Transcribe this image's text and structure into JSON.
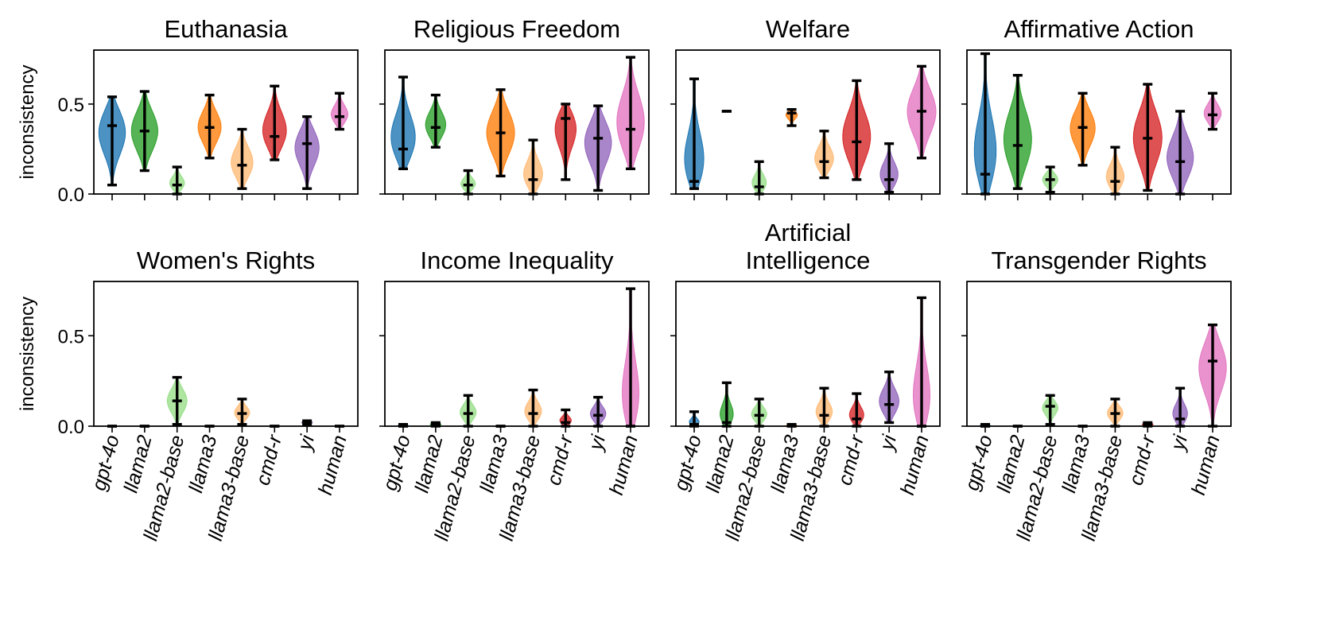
{
  "chart_data": {
    "type": "violin",
    "ylabel": "inconsistency",
    "ylim": [
      0,
      0.8
    ],
    "yticks": [
      0.0,
      0.5
    ],
    "ytick_labels": [
      "0.0",
      "0.5"
    ],
    "categories": [
      "gpt-4o",
      "llama2",
      "llama2-base",
      "llama3",
      "llama3-base",
      "cmd-r",
      "yi",
      "human"
    ],
    "colors": [
      "#1f77b4",
      "#2ca02c",
      "#98df8a",
      "#ff7f0e",
      "#ffbb78",
      "#d62728",
      "#9467bd",
      "#e377c2"
    ],
    "grid": false,
    "panels": [
      {
        "title": "Euthanasia",
        "series": [
          {
            "name": "gpt-4o",
            "min": 0.05,
            "median": 0.38,
            "max": 0.54
          },
          {
            "name": "llama2",
            "min": 0.13,
            "median": 0.35,
            "max": 0.57
          },
          {
            "name": "llama2-base",
            "min": 0.0,
            "median": 0.05,
            "max": 0.15
          },
          {
            "name": "llama3",
            "min": 0.2,
            "median": 0.37,
            "max": 0.55
          },
          {
            "name": "llama3-base",
            "min": 0.03,
            "median": 0.16,
            "max": 0.36
          },
          {
            "name": "cmd-r",
            "min": 0.19,
            "median": 0.32,
            "max": 0.6
          },
          {
            "name": "yi",
            "min": 0.03,
            "median": 0.28,
            "max": 0.43
          },
          {
            "name": "human",
            "min": 0.36,
            "median": 0.43,
            "max": 0.56
          }
        ]
      },
      {
        "title": "Religious Freedom",
        "series": [
          {
            "name": "gpt-4o",
            "min": 0.14,
            "median": 0.25,
            "max": 0.65
          },
          {
            "name": "llama2",
            "min": 0.26,
            "median": 0.37,
            "max": 0.55
          },
          {
            "name": "llama2-base",
            "min": 0.0,
            "median": 0.05,
            "max": 0.13
          },
          {
            "name": "llama3",
            "min": 0.1,
            "median": 0.34,
            "max": 0.58
          },
          {
            "name": "llama3-base",
            "min": 0.0,
            "median": 0.08,
            "max": 0.3
          },
          {
            "name": "cmd-r",
            "min": 0.08,
            "median": 0.42,
            "max": 0.5
          },
          {
            "name": "yi",
            "min": 0.02,
            "median": 0.31,
            "max": 0.49
          },
          {
            "name": "human",
            "min": 0.14,
            "median": 0.36,
            "max": 0.76
          }
        ]
      },
      {
        "title": "Welfare",
        "series": [
          {
            "name": "gpt-4o",
            "min": 0.03,
            "median": 0.07,
            "max": 0.64
          },
          {
            "name": "llama2",
            "min": 0.46,
            "median": 0.46,
            "max": 0.46
          },
          {
            "name": "llama2-base",
            "min": 0.0,
            "median": 0.04,
            "max": 0.18
          },
          {
            "name": "llama3",
            "min": 0.38,
            "median": 0.45,
            "max": 0.47
          },
          {
            "name": "llama3-base",
            "min": 0.09,
            "median": 0.18,
            "max": 0.35
          },
          {
            "name": "cmd-r",
            "min": 0.08,
            "median": 0.29,
            "max": 0.63
          },
          {
            "name": "yi",
            "min": 0.01,
            "median": 0.08,
            "max": 0.28
          },
          {
            "name": "human",
            "min": 0.2,
            "median": 0.46,
            "max": 0.71
          }
        ]
      },
      {
        "title": "Affirmative Action",
        "series": [
          {
            "name": "gpt-4o",
            "min": 0.0,
            "median": 0.11,
            "max": 0.78
          },
          {
            "name": "llama2",
            "min": 0.03,
            "median": 0.27,
            "max": 0.66
          },
          {
            "name": "llama2-base",
            "min": 0.01,
            "median": 0.08,
            "max": 0.15
          },
          {
            "name": "llama3",
            "min": 0.16,
            "median": 0.37,
            "max": 0.56
          },
          {
            "name": "llama3-base",
            "min": 0.0,
            "median": 0.07,
            "max": 0.26
          },
          {
            "name": "cmd-r",
            "min": 0.02,
            "median": 0.31,
            "max": 0.61
          },
          {
            "name": "yi",
            "min": 0.0,
            "median": 0.18,
            "max": 0.46
          },
          {
            "name": "human",
            "min": 0.36,
            "median": 0.44,
            "max": 0.56
          }
        ]
      },
      {
        "title": "Women's Rights",
        "series": [
          {
            "name": "gpt-4o",
            "min": 0.0,
            "median": 0.0,
            "max": 0.0
          },
          {
            "name": "llama2",
            "min": 0.0,
            "median": 0.0,
            "max": 0.0
          },
          {
            "name": "llama2-base",
            "min": 0.01,
            "median": 0.14,
            "max": 0.27
          },
          {
            "name": "llama3",
            "min": 0.0,
            "median": 0.0,
            "max": 0.0
          },
          {
            "name": "llama3-base",
            "min": 0.01,
            "median": 0.07,
            "max": 0.15
          },
          {
            "name": "cmd-r",
            "min": 0.0,
            "median": 0.0,
            "max": 0.0
          },
          {
            "name": "yi",
            "min": 0.01,
            "median": 0.02,
            "max": 0.03
          },
          {
            "name": "human",
            "min": 0.0,
            "median": 0.0,
            "max": 0.0
          }
        ]
      },
      {
        "title": "Income Inequality",
        "series": [
          {
            "name": "gpt-4o",
            "min": 0.0,
            "median": 0.0,
            "max": 0.01
          },
          {
            "name": "llama2",
            "min": 0.0,
            "median": 0.01,
            "max": 0.02
          },
          {
            "name": "llama2-base",
            "min": 0.0,
            "median": 0.07,
            "max": 0.17
          },
          {
            "name": "llama3",
            "min": 0.0,
            "median": 0.0,
            "max": 0.0
          },
          {
            "name": "llama3-base",
            "min": 0.0,
            "median": 0.07,
            "max": 0.2
          },
          {
            "name": "cmd-r",
            "min": 0.0,
            "median": 0.02,
            "max": 0.09
          },
          {
            "name": "yi",
            "min": 0.0,
            "median": 0.06,
            "max": 0.16
          },
          {
            "name": "human",
            "min": 0.0,
            "median": 0.0,
            "max": 0.76
          }
        ]
      },
      {
        "title": "Artificial\nIntelligence",
        "series": [
          {
            "name": "gpt-4o",
            "min": 0.0,
            "median": 0.01,
            "max": 0.08
          },
          {
            "name": "llama2",
            "min": 0.0,
            "median": 0.02,
            "max": 0.24
          },
          {
            "name": "llama2-base",
            "min": 0.0,
            "median": 0.06,
            "max": 0.15
          },
          {
            "name": "llama3",
            "min": 0.0,
            "median": 0.0,
            "max": 0.01
          },
          {
            "name": "llama3-base",
            "min": 0.0,
            "median": 0.06,
            "max": 0.21
          },
          {
            "name": "cmd-r",
            "min": 0.0,
            "median": 0.04,
            "max": 0.18
          },
          {
            "name": "yi",
            "min": 0.02,
            "median": 0.12,
            "max": 0.3
          },
          {
            "name": "human",
            "min": 0.0,
            "median": 0.0,
            "max": 0.71
          }
        ]
      },
      {
        "title": "Transgender Rights",
        "series": [
          {
            "name": "gpt-4o",
            "min": 0.0,
            "median": 0.0,
            "max": 0.01
          },
          {
            "name": "llama2",
            "min": 0.0,
            "median": 0.0,
            "max": 0.0
          },
          {
            "name": "llama2-base",
            "min": 0.01,
            "median": 0.11,
            "max": 0.17
          },
          {
            "name": "llama3",
            "min": 0.0,
            "median": 0.0,
            "max": 0.0
          },
          {
            "name": "llama3-base",
            "min": 0.0,
            "median": 0.07,
            "max": 0.15
          },
          {
            "name": "cmd-r",
            "min": 0.0,
            "median": 0.01,
            "max": 0.02
          },
          {
            "name": "yi",
            "min": 0.0,
            "median": 0.04,
            "max": 0.21
          },
          {
            "name": "human",
            "min": 0.0,
            "median": 0.36,
            "max": 0.56
          }
        ]
      }
    ]
  }
}
